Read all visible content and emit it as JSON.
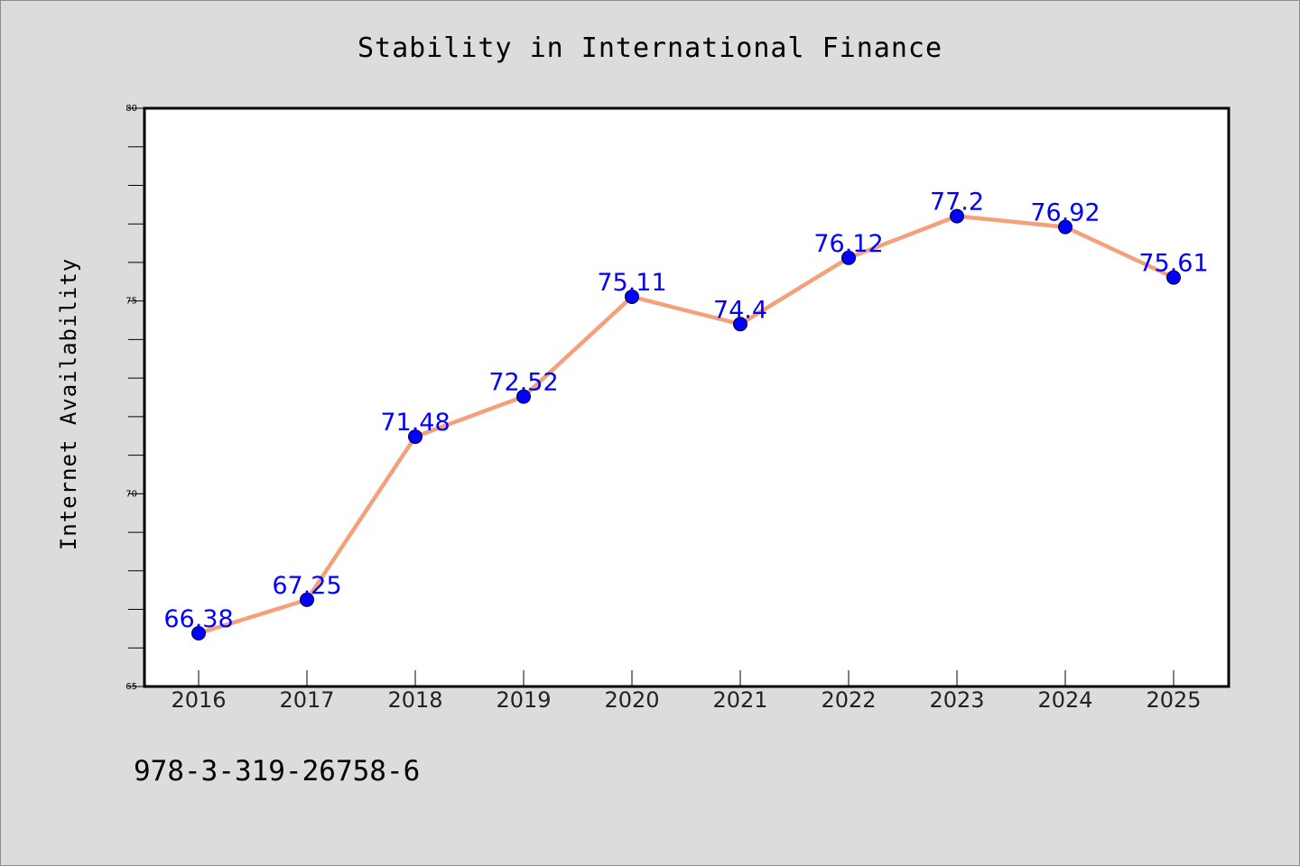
{
  "chart_data": {
    "type": "line",
    "title": "Stability in International Finance",
    "xlabel": "",
    "ylabel": "Internet Availability",
    "categories": [
      "2016",
      "2017",
      "2018",
      "2019",
      "2020",
      "2021",
      "2022",
      "2023",
      "2024",
      "2025"
    ],
    "series": [
      {
        "values": [
          66.38,
          67.25,
          71.48,
          72.52,
          75.11,
          74.4,
          76.12,
          77.2,
          76.92,
          75.61
        ],
        "data_labels": [
          "66.38",
          "67.25",
          "71.48",
          "72.52",
          "75.11",
          "74.4",
          "76.12",
          "77.2",
          "76.92",
          "75.61"
        ]
      }
    ],
    "ylim": [
      65,
      80
    ],
    "yticks": [
      "65",
      "70",
      "75",
      "80"
    ],
    "grid": false,
    "line_color": "#f4a07a",
    "marker_color": "#0000ff",
    "label_color": "#0000ff"
  },
  "footer": {
    "isbn": "978-3-319-26758-6"
  }
}
